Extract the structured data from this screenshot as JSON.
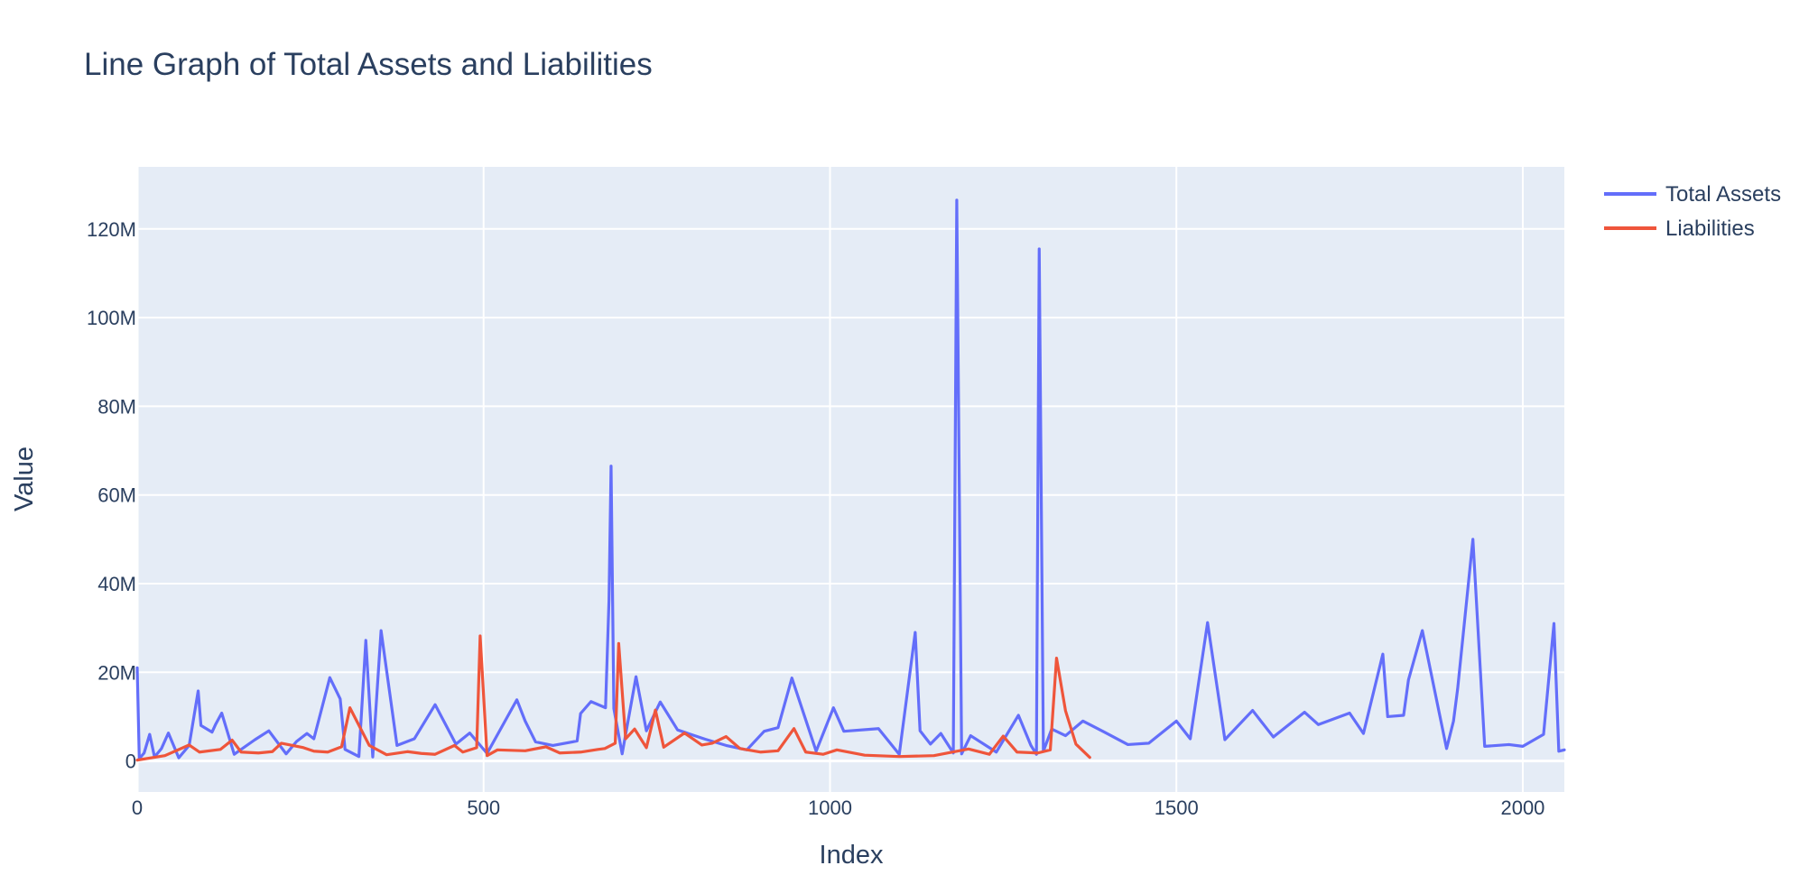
{
  "chart_data": {
    "type": "line",
    "title": "Line Graph of Total Assets and Liabilities",
    "xlabel": "Index",
    "ylabel": "Value",
    "xlim": [
      0,
      2060
    ],
    "ylim": [
      -7000000,
      134000000
    ],
    "grid": true,
    "legend_position": "top-right",
    "x_ticks": [
      {
        "value": 0,
        "label": "0"
      },
      {
        "value": 500,
        "label": "500"
      },
      {
        "value": 1000,
        "label": "1000"
      },
      {
        "value": 1500,
        "label": "1500"
      },
      {
        "value": 2000,
        "label": "2000"
      }
    ],
    "y_ticks": [
      {
        "value": 0,
        "label": "0"
      },
      {
        "value": 20000000,
        "label": "20M"
      },
      {
        "value": 40000000,
        "label": "40M"
      },
      {
        "value": 60000000,
        "label": "60M"
      },
      {
        "value": 80000000,
        "label": "80M"
      },
      {
        "value": 100000000,
        "label": "100M"
      },
      {
        "value": 120000000,
        "label": "120M"
      }
    ],
    "series": [
      {
        "name": "Total Assets",
        "color": "#636efa",
        "points": [
          [
            0,
            21000000
          ],
          [
            3,
            500000
          ],
          [
            10,
            1800000
          ],
          [
            18,
            6000000
          ],
          [
            25,
            900000
          ],
          [
            35,
            2800000
          ],
          [
            45,
            6300000
          ],
          [
            60,
            700000
          ],
          [
            75,
            3500000
          ],
          [
            88,
            15800000
          ],
          [
            92,
            8000000
          ],
          [
            108,
            6500000
          ],
          [
            113,
            8200000
          ],
          [
            122,
            10800000
          ],
          [
            140,
            1500000
          ],
          [
            170,
            4800000
          ],
          [
            190,
            6800000
          ],
          [
            215,
            1600000
          ],
          [
            230,
            4400000
          ],
          [
            245,
            6200000
          ],
          [
            255,
            5000000
          ],
          [
            278,
            18800000
          ],
          [
            293,
            14000000
          ],
          [
            300,
            2600000
          ],
          [
            320,
            1000000
          ],
          [
            330,
            27200000
          ],
          [
            340,
            900000
          ],
          [
            352,
            29400000
          ],
          [
            375,
            3500000
          ],
          [
            400,
            5000000
          ],
          [
            430,
            12700000
          ],
          [
            460,
            3800000
          ],
          [
            480,
            6300000
          ],
          [
            505,
            1700000
          ],
          [
            548,
            13800000
          ],
          [
            560,
            9000000
          ],
          [
            575,
            4300000
          ],
          [
            600,
            3500000
          ],
          [
            635,
            4500000
          ],
          [
            640,
            10700000
          ],
          [
            655,
            13400000
          ],
          [
            676,
            12000000
          ],
          [
            681,
            36200000
          ],
          [
            684,
            66500000
          ],
          [
            688,
            11800000
          ],
          [
            700,
            1600000
          ],
          [
            720,
            19000000
          ],
          [
            735,
            6800000
          ],
          [
            755,
            13300000
          ],
          [
            780,
            7000000
          ],
          [
            820,
            4900000
          ],
          [
            850,
            3500000
          ],
          [
            880,
            2500000
          ],
          [
            905,
            6700000
          ],
          [
            925,
            7500000
          ],
          [
            945,
            18700000
          ],
          [
            980,
            2200000
          ],
          [
            1005,
            12000000
          ],
          [
            1020,
            6700000
          ],
          [
            1070,
            7300000
          ],
          [
            1100,
            1500000
          ],
          [
            1123,
            29000000
          ],
          [
            1130,
            6800000
          ],
          [
            1145,
            3800000
          ],
          [
            1160,
            6200000
          ],
          [
            1178,
            1800000
          ],
          [
            1183,
            126500000
          ],
          [
            1190,
            1600000
          ],
          [
            1203,
            5700000
          ],
          [
            1240,
            2000000
          ],
          [
            1272,
            10300000
          ],
          [
            1290,
            3500000
          ],
          [
            1298,
            1500000
          ],
          [
            1302,
            115500000
          ],
          [
            1308,
            2200000
          ],
          [
            1320,
            7200000
          ],
          [
            1340,
            5700000
          ],
          [
            1365,
            9000000
          ],
          [
            1395,
            6600000
          ],
          [
            1430,
            3700000
          ],
          [
            1460,
            4000000
          ],
          [
            1500,
            9000000
          ],
          [
            1520,
            5000000
          ],
          [
            1545,
            31200000
          ],
          [
            1570,
            4800000
          ],
          [
            1610,
            11400000
          ],
          [
            1640,
            5400000
          ],
          [
            1685,
            11000000
          ],
          [
            1705,
            8200000
          ],
          [
            1750,
            10800000
          ],
          [
            1770,
            6200000
          ],
          [
            1798,
            24100000
          ],
          [
            1805,
            10000000
          ],
          [
            1828,
            10300000
          ],
          [
            1835,
            18300000
          ],
          [
            1855,
            29400000
          ],
          [
            1890,
            2800000
          ],
          [
            1900,
            9000000
          ],
          [
            1906,
            16300000
          ],
          [
            1928,
            50000000
          ],
          [
            1945,
            3300000
          ],
          [
            1980,
            3700000
          ],
          [
            2000,
            3300000
          ],
          [
            2030,
            6000000
          ],
          [
            2045,
            31000000
          ],
          [
            2052,
            2200000
          ],
          [
            2060,
            2500000
          ]
        ]
      },
      {
        "name": "Liabilities",
        "color": "#ef553b",
        "points": [
          [
            0,
            200000
          ],
          [
            40,
            1200000
          ],
          [
            75,
            3600000
          ],
          [
            90,
            2000000
          ],
          [
            120,
            2600000
          ],
          [
            137,
            4700000
          ],
          [
            150,
            2000000
          ],
          [
            175,
            1800000
          ],
          [
            195,
            2100000
          ],
          [
            208,
            4000000
          ],
          [
            240,
            3000000
          ],
          [
            255,
            2200000
          ],
          [
            275,
            2000000
          ],
          [
            295,
            3200000
          ],
          [
            307,
            12000000
          ],
          [
            335,
            3500000
          ],
          [
            360,
            1400000
          ],
          [
            390,
            2100000
          ],
          [
            410,
            1700000
          ],
          [
            430,
            1500000
          ],
          [
            458,
            3500000
          ],
          [
            470,
            2000000
          ],
          [
            490,
            3000000
          ],
          [
            495,
            28200000
          ],
          [
            505,
            1200000
          ],
          [
            520,
            2500000
          ],
          [
            560,
            2300000
          ],
          [
            590,
            3200000
          ],
          [
            610,
            1800000
          ],
          [
            640,
            2000000
          ],
          [
            665,
            2600000
          ],
          [
            675,
            2800000
          ],
          [
            690,
            4000000
          ],
          [
            695,
            26500000
          ],
          [
            705,
            5000000
          ],
          [
            718,
            7200000
          ],
          [
            735,
            3000000
          ],
          [
            748,
            11500000
          ],
          [
            760,
            3100000
          ],
          [
            790,
            6300000
          ],
          [
            815,
            3600000
          ],
          [
            830,
            4000000
          ],
          [
            850,
            5500000
          ],
          [
            870,
            2800000
          ],
          [
            900,
            2000000
          ],
          [
            925,
            2300000
          ],
          [
            948,
            7300000
          ],
          [
            965,
            2000000
          ],
          [
            990,
            1500000
          ],
          [
            1010,
            2500000
          ],
          [
            1050,
            1300000
          ],
          [
            1100,
            1000000
          ],
          [
            1150,
            1200000
          ],
          [
            1200,
            2700000
          ],
          [
            1230,
            1500000
          ],
          [
            1250,
            5600000
          ],
          [
            1270,
            2000000
          ],
          [
            1300,
            1800000
          ],
          [
            1318,
            2500000
          ],
          [
            1327,
            23200000
          ],
          [
            1340,
            11300000
          ],
          [
            1355,
            3800000
          ],
          [
            1375,
            800000
          ]
        ]
      }
    ]
  }
}
